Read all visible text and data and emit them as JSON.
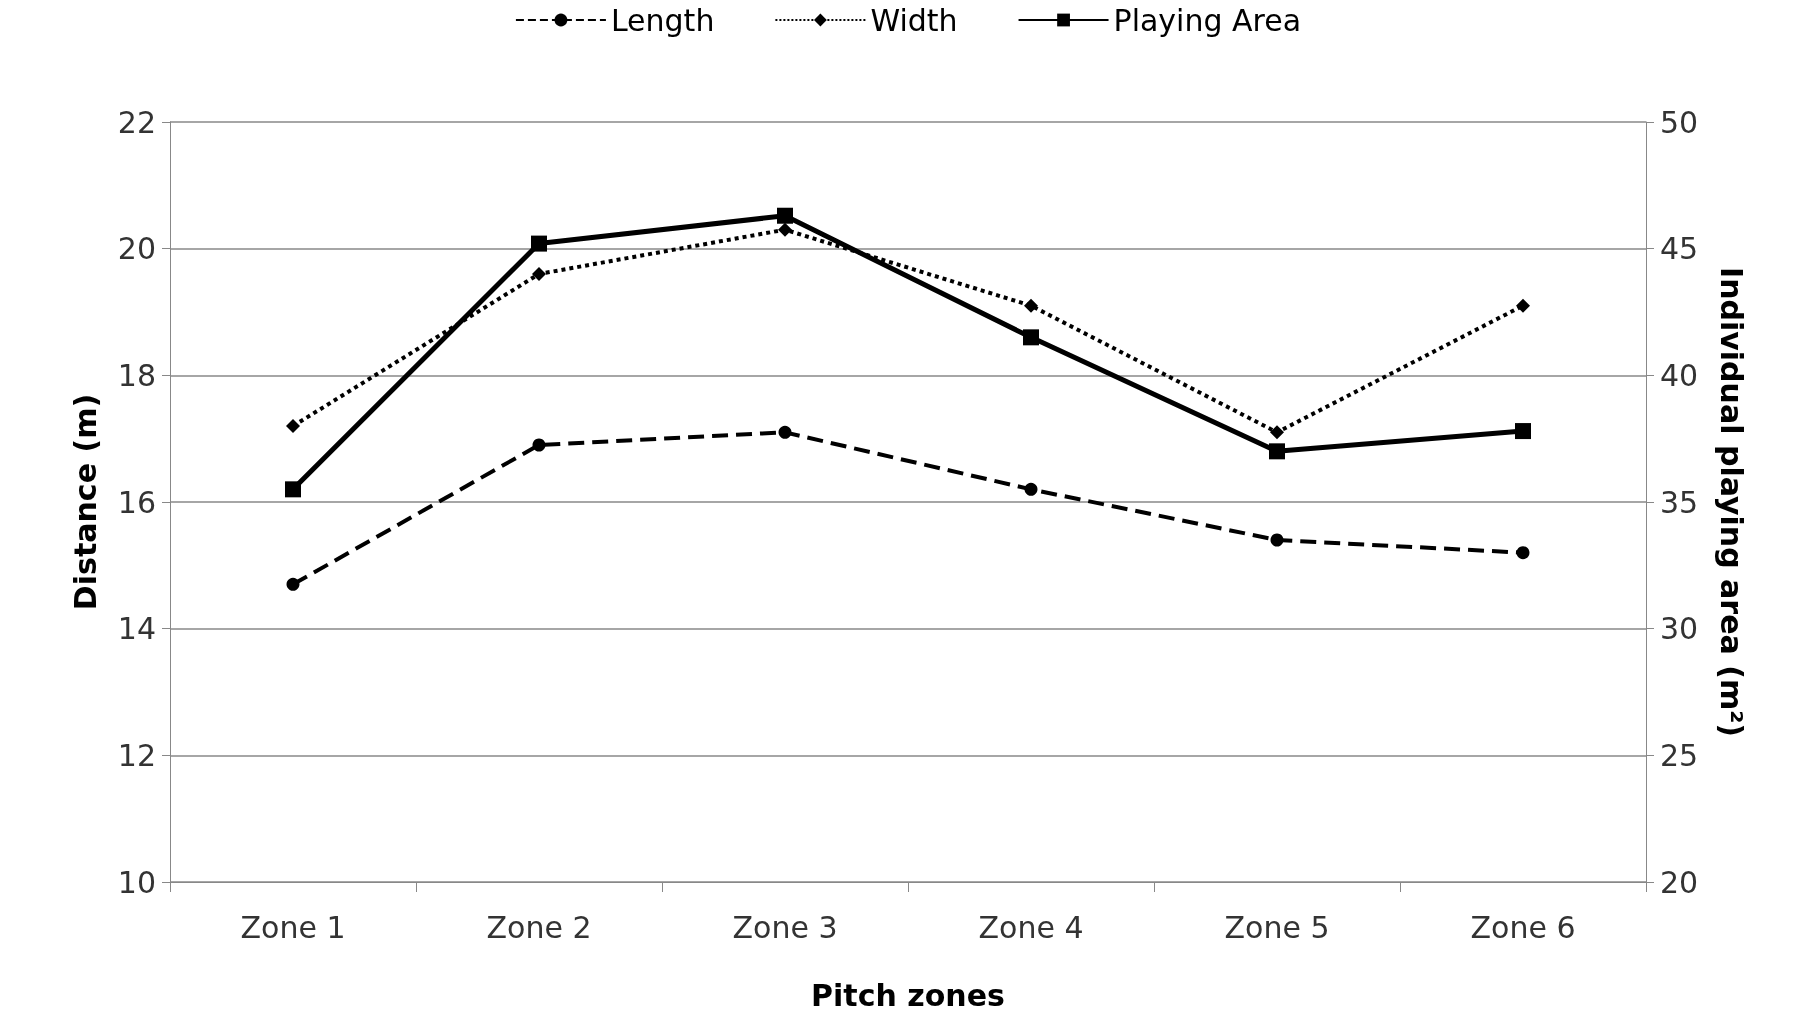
{
  "chart_data": {
    "type": "line",
    "xlabel": "Pitch zones",
    "ylabel": "Distance (m)",
    "y2label": "Individual playing area (m²)",
    "categories": [
      "Zone 1",
      "Zone 2",
      "Zone 3",
      "Zone 4",
      "Zone 5",
      "Zone 6"
    ],
    "series": [
      {
        "name": "Length",
        "color": "#000000",
        "line_style": "dashed",
        "marker": "circle",
        "values": [
          14.7,
          16.9,
          17.1,
          16.2,
          15.4,
          15.2
        ]
      },
      {
        "name": "Width",
        "color": "#000000",
        "line_style": "dotted",
        "marker": "diamond",
        "values": [
          17.2,
          19.6,
          20.3,
          19.1,
          17.1,
          19.1
        ]
      },
      {
        "name": "Playing Area",
        "color": "#000000",
        "line_style": "solid",
        "marker": "square",
        "axis": "y2",
        "values": [
          35.5,
          45.2,
          46.3,
          41.5,
          37.0,
          37.8
        ]
      }
    ],
    "ylim": [
      10,
      22
    ],
    "yticks": [
      10,
      12,
      14,
      16,
      18,
      20,
      22
    ],
    "y2lim": [
      20,
      50
    ],
    "y2ticks": [
      20,
      25,
      30,
      35,
      40,
      45,
      50
    ],
    "grid": "y",
    "legend": "top"
  }
}
